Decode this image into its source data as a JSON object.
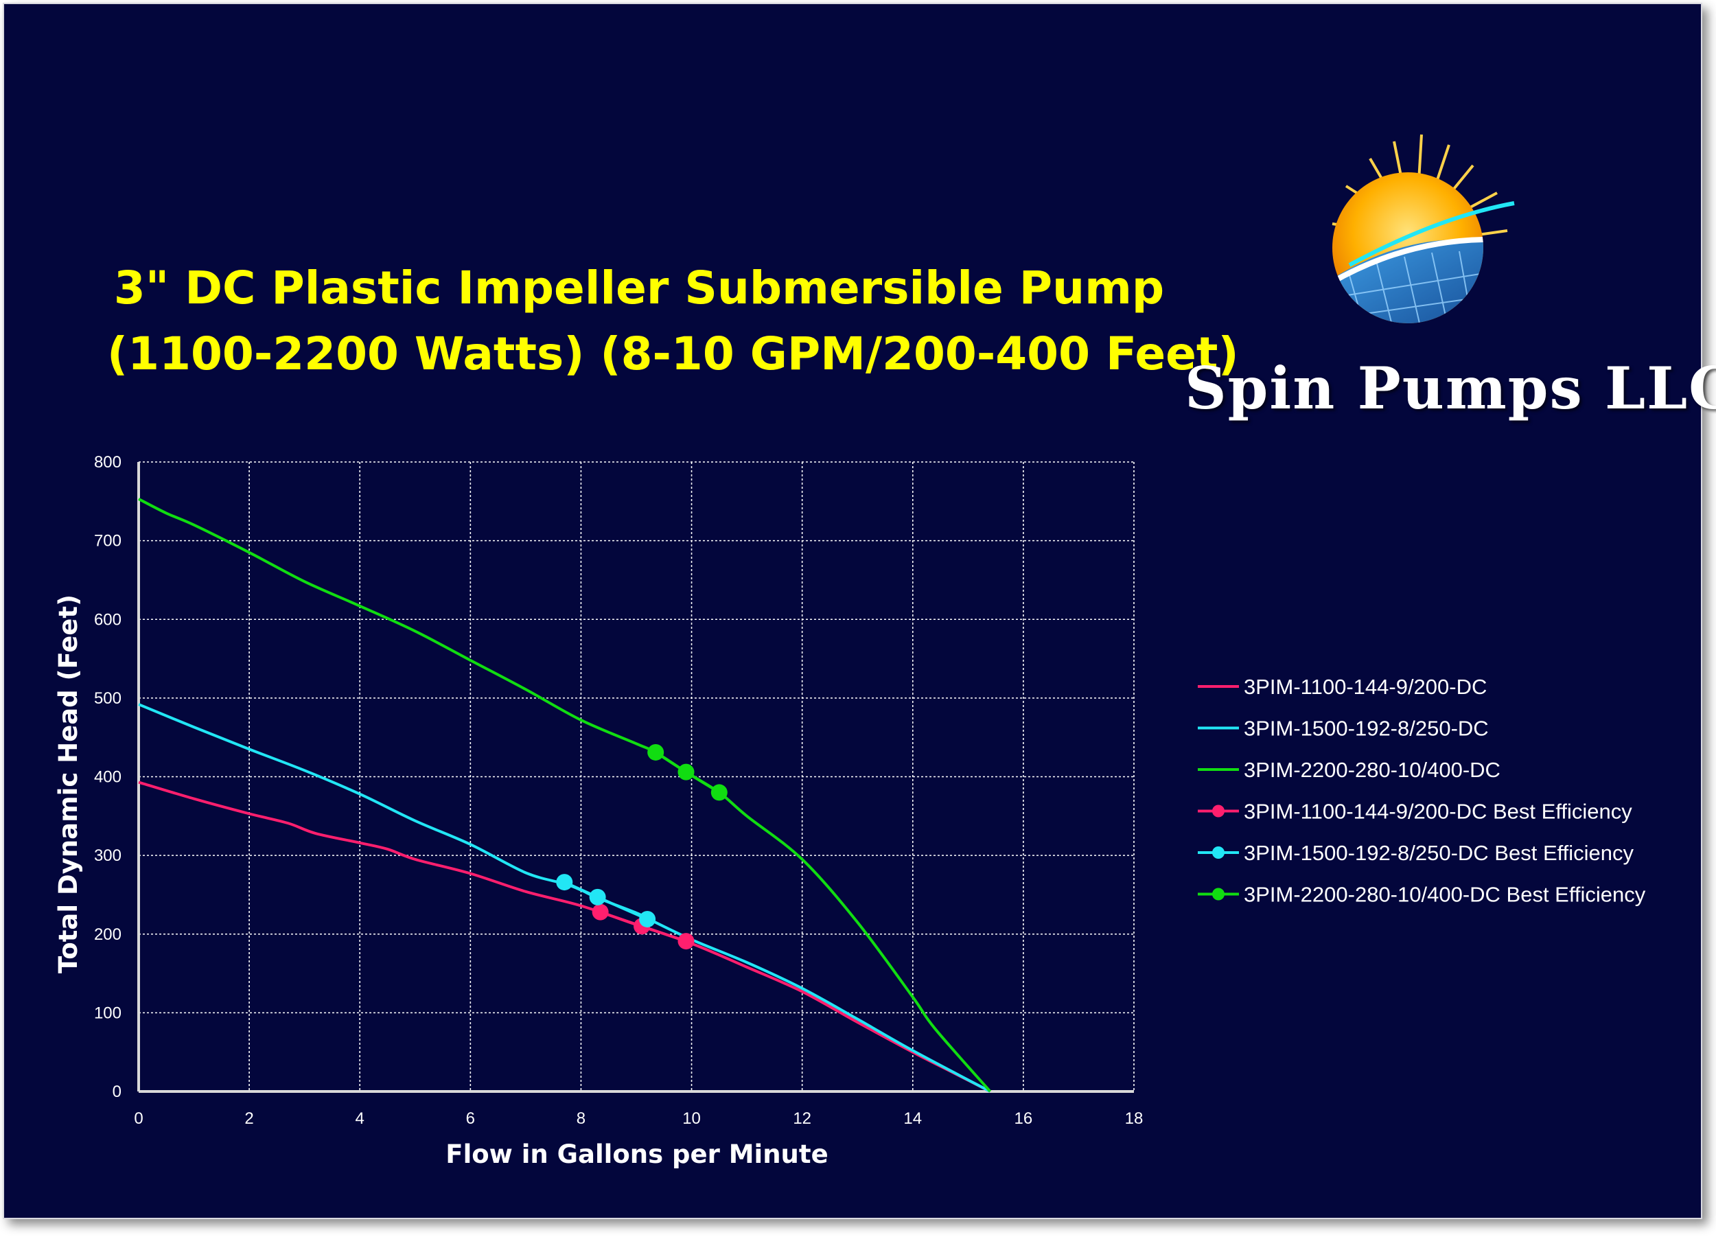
{
  "title": {
    "line1": "3\" DC Plastic Impeller Submersible Pump",
    "line2": "(1100-2200 Watts) (8-10 GPM/200-400 Feet)"
  },
  "brand": {
    "name": "Spin Pumps LLC"
  },
  "colors": {
    "background": "#03063c",
    "title": "#ffff00",
    "grid": "#ffffff",
    "series_1100": "#ff1f6e",
    "series_1500": "#22e6f5",
    "series_2200": "#11dd11",
    "logo_sun": "#ffb000",
    "logo_panel": "#1f6fb8"
  },
  "chart_data": {
    "type": "line",
    "title": "3\" DC Plastic Impeller Submersible Pump (1100-2200 Watts) (8-10 GPM/200-400 Feet)",
    "xlabel": "Flow in Gallons per Minute",
    "ylabel": "Total Dynamic Head (Feet)",
    "xlim": [
      0,
      18
    ],
    "ylim": [
      0,
      800
    ],
    "x_ticks": [
      "0",
      "2",
      "4",
      "6",
      "8",
      "10",
      "12",
      "14",
      "16",
      "18"
    ],
    "y_ticks": [
      "0",
      "100",
      "200",
      "300",
      "400",
      "500",
      "600",
      "700",
      "800"
    ],
    "grid": true,
    "legend_position": "right",
    "series": [
      {
        "name": "3PIM-1100-144-9/200-DC",
        "kind": "line",
        "color": "#ff1f6e",
        "points": [
          [
            0,
            393
          ],
          [
            1,
            372
          ],
          [
            2,
            353
          ],
          [
            2.7,
            341
          ],
          [
            3.2,
            328
          ],
          [
            4,
            316
          ],
          [
            4.5,
            308
          ],
          [
            5,
            295
          ],
          [
            6,
            277
          ],
          [
            7,
            254
          ],
          [
            8,
            236
          ],
          [
            9,
            212
          ],
          [
            10,
            188
          ],
          [
            11,
            158
          ],
          [
            12,
            127
          ],
          [
            13,
            88
          ],
          [
            14,
            50
          ],
          [
            14.7,
            25
          ],
          [
            15.4,
            0
          ]
        ]
      },
      {
        "name": "3PIM-1500-192-8/250-DC",
        "kind": "line",
        "color": "#22e6f5",
        "points": [
          [
            0,
            492
          ],
          [
            1,
            463
          ],
          [
            2,
            435
          ],
          [
            3,
            408
          ],
          [
            4,
            378
          ],
          [
            5,
            344
          ],
          [
            6,
            314
          ],
          [
            7,
            278
          ],
          [
            7.7,
            264
          ],
          [
            8,
            256
          ],
          [
            8.3,
            246
          ],
          [
            9,
            227
          ],
          [
            9.2,
            220
          ],
          [
            10,
            193
          ],
          [
            11,
            164
          ],
          [
            12,
            131
          ],
          [
            13,
            92
          ],
          [
            14,
            52
          ],
          [
            15.4,
            0
          ]
        ]
      },
      {
        "name": "3PIM-2200-280-10/400-DC",
        "kind": "line",
        "color": "#11dd11",
        "points": [
          [
            0,
            753
          ],
          [
            0.5,
            735
          ],
          [
            1,
            720
          ],
          [
            2,
            685
          ],
          [
            3,
            648
          ],
          [
            4,
            617
          ],
          [
            5,
            585
          ],
          [
            6,
            548
          ],
          [
            7,
            511
          ],
          [
            8,
            472
          ],
          [
            9,
            442
          ],
          [
            9.35,
            431
          ],
          [
            9.9,
            406
          ],
          [
            10.5,
            380
          ],
          [
            11,
            350
          ],
          [
            12,
            295
          ],
          [
            13,
            215
          ],
          [
            14,
            120
          ],
          [
            14.4,
            80
          ],
          [
            15.4,
            0
          ]
        ]
      },
      {
        "name": "3PIM-1100-144-9/200-DC Best Efficiency",
        "kind": "points",
        "color": "#ff1f6e",
        "points": [
          [
            8.35,
            228
          ],
          [
            9.1,
            210
          ],
          [
            9.9,
            191
          ]
        ]
      },
      {
        "name": "3PIM-1500-192-8/250-DC Best Efficiency",
        "kind": "points",
        "color": "#22e6f5",
        "points": [
          [
            7.7,
            266
          ],
          [
            8.3,
            247
          ],
          [
            9.2,
            219
          ]
        ]
      },
      {
        "name": "3PIM-2200-280-10/400-DC Best Efficiency",
        "kind": "points",
        "color": "#11dd11",
        "points": [
          [
            9.35,
            431
          ],
          [
            9.9,
            406
          ],
          [
            10.5,
            380
          ]
        ]
      }
    ]
  }
}
